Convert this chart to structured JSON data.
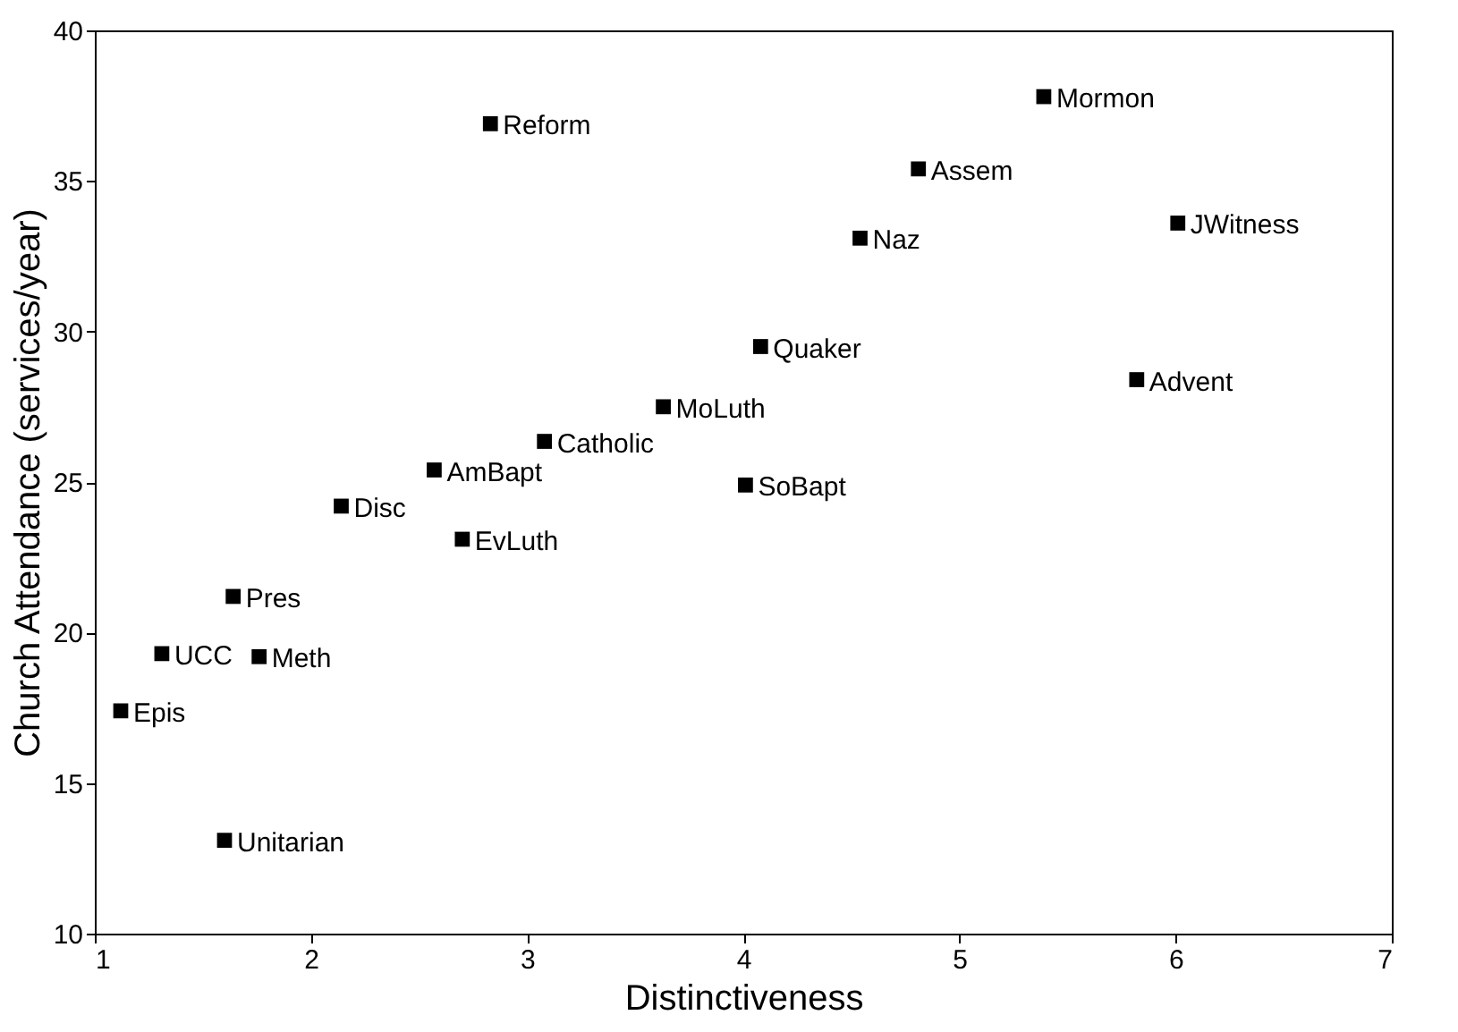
{
  "chart_data": {
    "type": "scatter",
    "xlabel": "Distinctiveness",
    "ylabel": "Church Attendance (services/year)",
    "xlim": [
      1,
      7
    ],
    "xticks": [
      1,
      2,
      3,
      4,
      5,
      6,
      7
    ],
    "ylim": [
      10,
      40
    ],
    "yticks": [
      10,
      15,
      20,
      25,
      30,
      35,
      40
    ],
    "grid": false,
    "marker": "square",
    "series": [
      {
        "color": "#000000",
        "x": [
          2.83,
          3.08,
          2.57,
          2.14,
          3.63,
          5.39,
          4.81,
          4.54,
          6.01,
          4.08,
          5.82,
          4.01,
          2.7,
          1.64,
          1.31,
          1.76,
          1.12,
          1.6
        ],
        "values": [
          36.9,
          26.35,
          25.4,
          24.2,
          27.5,
          37.8,
          35.4,
          33.1,
          33.6,
          29.5,
          28.4,
          24.9,
          23.1,
          21.2,
          19.3,
          19.2,
          17.4,
          13.1
        ]
      }
    ],
    "annotations": [
      {
        "text": "Reform",
        "x": 2.83,
        "y": 36.9
      },
      {
        "text": "Catholic",
        "x": 3.08,
        "y": 26.35
      },
      {
        "text": "AmBapt",
        "x": 2.57,
        "y": 25.4
      },
      {
        "text": "Disc",
        "x": 2.14,
        "y": 24.2
      },
      {
        "text": "MoLuth",
        "x": 3.63,
        "y": 27.5
      },
      {
        "text": "Mormon",
        "x": 5.39,
        "y": 37.8
      },
      {
        "text": "Assem",
        "x": 4.81,
        "y": 35.4
      },
      {
        "text": "Naz",
        "x": 4.54,
        "y": 33.1
      },
      {
        "text": "JWitness",
        "x": 6.01,
        "y": 33.6
      },
      {
        "text": "Quaker",
        "x": 4.08,
        "y": 29.5
      },
      {
        "text": "Advent",
        "x": 5.82,
        "y": 28.4
      },
      {
        "text": "SoBapt",
        "x": 4.01,
        "y": 24.9
      },
      {
        "text": "EvLuth",
        "x": 2.7,
        "y": 23.1
      },
      {
        "text": "Pres",
        "x": 1.64,
        "y": 21.2
      },
      {
        "text": "UCC",
        "x": 1.31,
        "y": 19.3
      },
      {
        "text": "Meth",
        "x": 1.76,
        "y": 19.2
      },
      {
        "text": "Epis",
        "x": 1.12,
        "y": 17.4
      },
      {
        "text": "Unitarian",
        "x": 1.6,
        "y": 13.1
      }
    ]
  }
}
